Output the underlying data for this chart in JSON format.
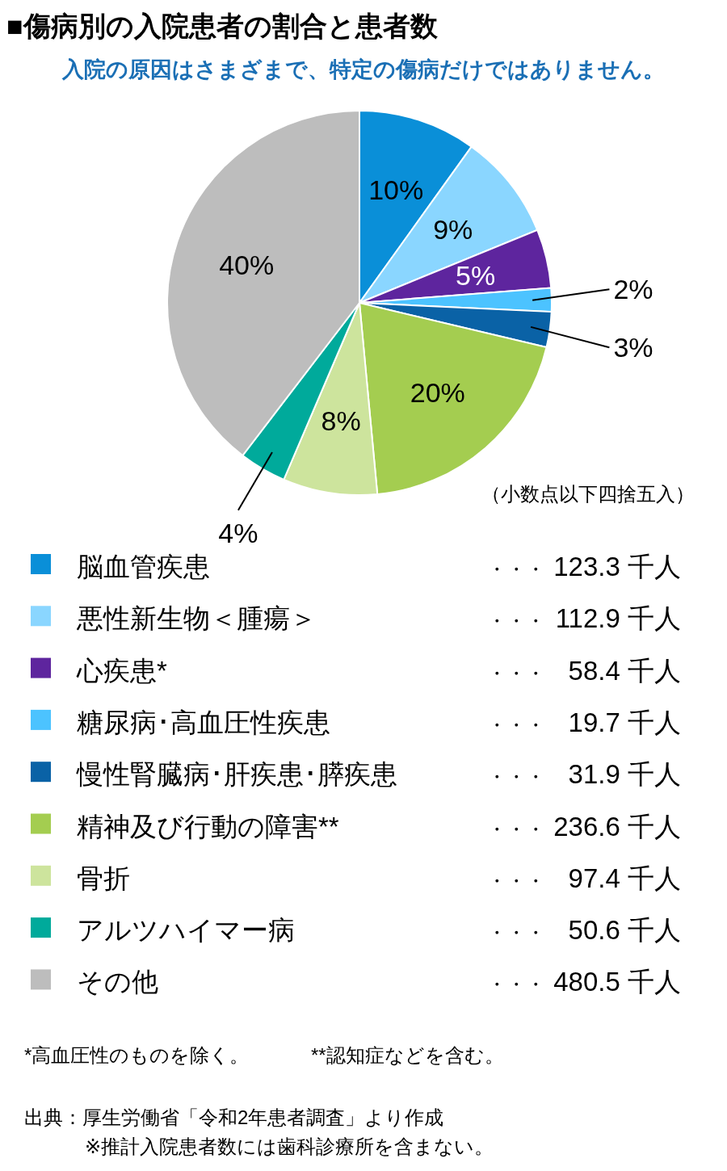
{
  "chart_data": {
    "type": "pie",
    "title": "■傷病別の入院患者の割合と患者数",
    "subtitle": "入院の原因はさまざまで、特定の傷病だけではありません。",
    "categories": [
      "脳血管疾患",
      "悪性新生物＜腫瘍＞",
      "心疾患*",
      "糖尿病･高血圧性疾患",
      "慢性腎臓病･肝疾患･膵疾患",
      "精神及び行動の障害**",
      "骨折",
      "アルツハイマー病",
      "その他"
    ],
    "values": [
      10,
      9,
      5,
      2,
      3,
      20,
      8,
      4,
      40
    ],
    "value_labels": [
      "10%",
      "9%",
      "5%",
      "2%",
      "3%",
      "20%",
      "8%",
      "4%",
      "40%"
    ],
    "colors": [
      "#0a8fd8",
      "#8ad6ff",
      "#5e259e",
      "#4cc3ff",
      "#0a62a6",
      "#a4cd50",
      "#cde49d",
      "#00aa9b",
      "#bdbdbd"
    ],
    "legend": "bottom",
    "annotations": [
      {
        "text": "・・・ 123.3 千人",
        "x": "脳血管疾患"
      },
      {
        "text": "・・・ 112.9 千人",
        "x": "悪性新生物＜腫瘍＞"
      },
      {
        "text": "・・・ 58.4 千人",
        "x": "心疾患*"
      },
      {
        "text": "・・・ 19.7 千人",
        "x": "糖尿病･高血圧性疾患"
      },
      {
        "text": "・・・ 31.9 千人",
        "x": "慢性腎臓病･肝疾患･膵疾患"
      },
      {
        "text": "・・・ 236.6 千人",
        "x": "精神及び行動の障害**"
      },
      {
        "text": "・・・ 97.4 千人",
        "x": "骨折"
      },
      {
        "text": "・・・ 50.6 千人",
        "x": "アルツハイマー病"
      },
      {
        "text": "・・・ 480.5 千人",
        "x": "その他"
      },
      "（小数点以下四捨五入）",
      "*高血圧性のものを除く。",
      "**認知症などを含む。",
      "出典：厚生労働省「令和2年患者調査」より作成",
      "※推計入院患者数には歯科診療所を含まない。"
    ]
  }
}
